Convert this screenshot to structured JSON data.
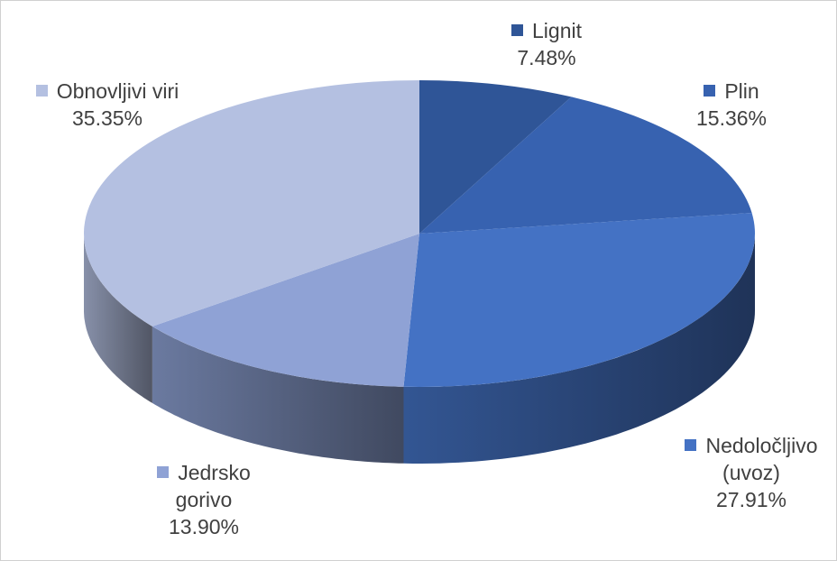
{
  "chart_data": {
    "type": "pie3d",
    "categories": [
      "Lignit",
      "Plin",
      "Nedoločljivo (uvoz)",
      "Jedrsko gorivo",
      "Obnovljivi viri"
    ],
    "values": [
      7.48,
      15.36,
      27.91,
      13.9,
      35.35
    ],
    "value_labels": [
      "7.48%",
      "15.36%",
      "27.91%",
      "13.90%",
      "35.35%"
    ],
    "colors": [
      "#2f5597",
      "#3762b0",
      "#4472c4",
      "#8fa2d5",
      "#b4c0e1"
    ]
  }
}
